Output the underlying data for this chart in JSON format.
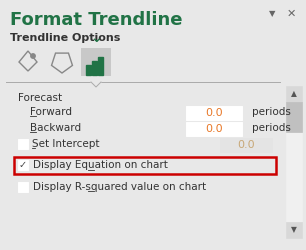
{
  "title": "Format Trendline",
  "title_color": "#217346",
  "panel_bg": "#e8e8e8",
  "trendline_options_text": "Trendline Options",
  "forecast_text": "Forecast",
  "forward_text": "Forward",
  "backward_text": "Backward",
  "set_intercept_text": "Set Intercept",
  "display_eq_text": "Display Equation on chart",
  "display_r2_text": "Display R-squared value on chart",
  "forward_val": "0.0",
  "backward_val": "0.0",
  "intercept_val": "0.0",
  "periods_text": "periods",
  "highlight_rect_color": "#cc0000",
  "icon_bar_color": "#217346",
  "selected_icon_bg": "#c8c8c8",
  "separator_color": "#aaaaaa",
  "input_bg": "#ffffff",
  "input_border": "#b0b0b0",
  "check_border": "#999999",
  "scroll_bg": "#d8d8d8",
  "scroll_border": "#b8b8b8",
  "val_color": "#e87828",
  "intercept_val_color": "#c8a878",
  "text_color": "#333333",
  "chevron_color": "#217346"
}
